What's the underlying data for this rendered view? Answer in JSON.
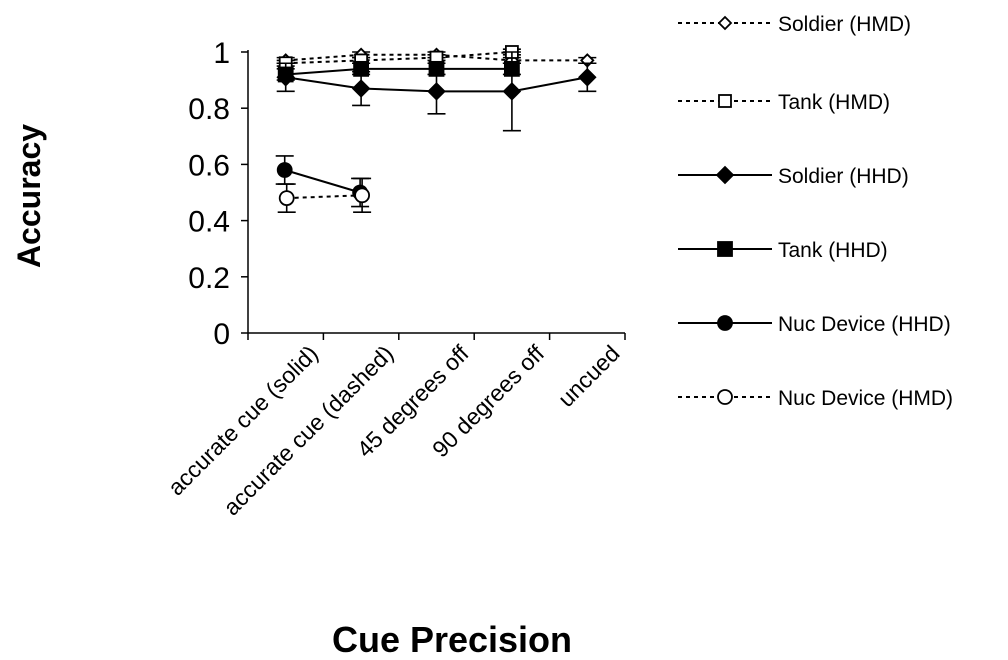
{
  "chart_data": {
    "type": "line",
    "xlabel": "Cue Precision",
    "ylabel": "Accuracy",
    "ylim": [
      0,
      1
    ],
    "yticks": [
      "0",
      "0.2",
      "0.4",
      "0.6",
      "0.8",
      "1"
    ],
    "categories": [
      "accurate cue (solid)",
      "accurate cue (dashed)",
      "45 degrees off",
      "90 degrees off",
      "uncued"
    ],
    "grid": false,
    "legend_position": "right",
    "series": [
      {
        "name": "Soldier (HMD)",
        "marker": "diamond-open",
        "line": "dotted",
        "values": [
          0.97,
          0.99,
          0.99,
          0.97,
          0.97
        ],
        "error": [
          0.01,
          0.01,
          0.01,
          0.01,
          0.01
        ]
      },
      {
        "name": "Tank (HMD)",
        "marker": "square-open",
        "line": "dotted",
        "values": [
          0.96,
          0.97,
          0.98,
          1.0,
          null
        ],
        "error": [
          0.01,
          0.01,
          0.01,
          0.01,
          null
        ]
      },
      {
        "name": "Soldier (HHD)",
        "marker": "diamond-filled",
        "line": "solid",
        "values": [
          0.91,
          0.87,
          0.86,
          0.86,
          0.91
        ],
        "error": [
          0.05,
          0.06,
          0.08,
          0.14,
          0.05
        ]
      },
      {
        "name": "Tank (HHD)",
        "marker": "square-filled",
        "line": "solid",
        "values": [
          0.92,
          0.94,
          0.94,
          0.94,
          null
        ],
        "error": [
          0.02,
          0.02,
          0.02,
          0.02,
          null
        ]
      },
      {
        "name": "Nuc Device (HHD)",
        "marker": "circle-filled",
        "line": "solid",
        "values": [
          0.58,
          0.5,
          null,
          null,
          null
        ],
        "error": [
          0.05,
          0.05,
          null,
          null,
          null
        ]
      },
      {
        "name": "Nuc Device (HMD)",
        "marker": "circle-open",
        "line": "dotted",
        "values": [
          0.48,
          0.49,
          null,
          null,
          null
        ],
        "error": [
          0.05,
          0.06,
          null,
          null,
          null
        ]
      }
    ]
  }
}
